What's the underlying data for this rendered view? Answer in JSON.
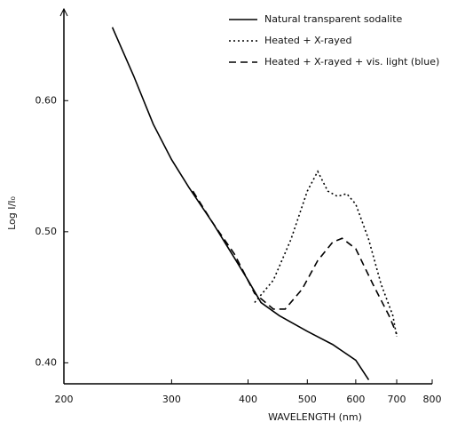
{
  "chart_data": {
    "type": "line",
    "x_label": "WAVELENGTH (nm)",
    "y_label": "Log I/I₀",
    "xscale": "log",
    "xlim": [
      200,
      800
    ],
    "xticks": [
      200,
      300,
      400,
      500,
      600,
      700,
      800
    ],
    "ylim": [
      0.384,
      0.67
    ],
    "yticks": [
      {
        "value": 0.4,
        "label": "0.40"
      },
      {
        "value": 0.5,
        "label": "0.50"
      },
      {
        "value": 0.6,
        "label": "0.60"
      }
    ],
    "legend": "upper right",
    "series": [
      {
        "name": "Natural transparent sodalite",
        "color": "#000000",
        "dash": "solid",
        "x": [
          240,
          260,
          280,
          300,
          320,
          350,
          380,
          400,
          420,
          450,
          500,
          550,
          600,
          630
        ],
        "values": [
          0.656,
          0.619,
          0.582,
          0.555,
          0.534,
          0.507,
          0.48,
          0.463,
          0.446,
          0.436,
          0.424,
          0.414,
          0.402,
          0.387
        ]
      },
      {
        "name": "Heated + X-rayed",
        "color": "#000000",
        "dash": "dotted",
        "x": [
          410,
          440,
          470,
          500,
          520,
          540,
          560,
          580,
          600,
          630,
          660,
          690,
          700
        ],
        "values": [
          0.446,
          0.463,
          0.494,
          0.531,
          0.546,
          0.531,
          0.527,
          0.529,
          0.521,
          0.494,
          0.46,
          0.436,
          0.42
        ]
      },
      {
        "name": "Heated + X-rayed + vis. light (blue)",
        "color": "#000000",
        "dash": "dashed",
        "x": [
          325,
          350,
          380,
          410,
          440,
          460,
          490,
          520,
          550,
          570,
          600,
          640,
          680,
          700
        ],
        "values": [
          0.531,
          0.507,
          0.483,
          0.453,
          0.441,
          0.441,
          0.456,
          0.478,
          0.492,
          0.495,
          0.487,
          0.46,
          0.436,
          0.422
        ]
      }
    ]
  }
}
